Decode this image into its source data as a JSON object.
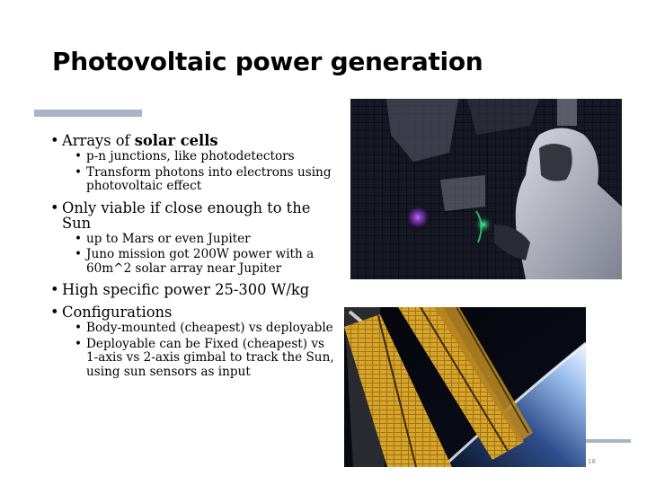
{
  "slide": {
    "title": "Photovoltaic power generation",
    "page_number": "18",
    "colors": {
      "accent": "#a9b3c9",
      "text": "#000000"
    }
  },
  "bullets": [
    {
      "prefix": "Arrays of ",
      "bold": "solar cells",
      "subs": [
        "p-n junctions, like photodetectors",
        "Transform photons into electrons using photovoltaic effect"
      ]
    },
    {
      "text": "Only viable if close enough to the Sun",
      "subs": [
        "up to Mars or even Jupiter",
        "Juno mission got 200W power with a 60m^2 solar array near Jupiter"
      ]
    },
    {
      "text": "High specific power 25-300 W/kg",
      "subs": []
    },
    {
      "text": "Configurations",
      "subs": [
        "Body-mounted (cheapest) vs deployable",
        "Deployable can be Fixed (cheapest) vs 1-axis vs 2-axis gimbal to track the Sun, using sun sensors as input"
      ]
    }
  ],
  "images": {
    "cleanroom": {
      "subject": "technician-inspecting-solar-array-panel"
    },
    "iss": {
      "subject": "solar-array-wings-in-orbit"
    }
  }
}
